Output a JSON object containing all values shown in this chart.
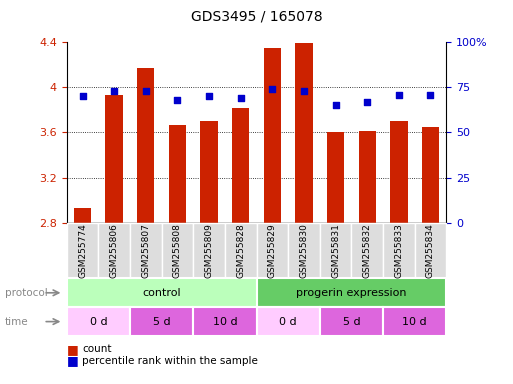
{
  "title": "GDS3495 / 165078",
  "samples": [
    "GSM255774",
    "GSM255806",
    "GSM255807",
    "GSM255808",
    "GSM255809",
    "GSM255828",
    "GSM255829",
    "GSM255830",
    "GSM255831",
    "GSM255832",
    "GSM255833",
    "GSM255834"
  ],
  "bar_values": [
    2.93,
    3.93,
    4.17,
    3.67,
    3.7,
    3.82,
    4.35,
    4.39,
    3.6,
    3.61,
    3.7,
    3.65
  ],
  "dot_values_pct": [
    70,
    73,
    73,
    68,
    70,
    69,
    74,
    73,
    65,
    67,
    71,
    71
  ],
  "bar_color": "#cc2200",
  "dot_color": "#0000cc",
  "ylim_left": [
    2.8,
    4.4
  ],
  "ylim_right": [
    0,
    100
  ],
  "yticks_left": [
    2.8,
    3.2,
    3.6,
    4.0,
    4.4
  ],
  "yticks_right": [
    0,
    25,
    50,
    75,
    100
  ],
  "ytick_labels_left": [
    "2.8",
    "3.2",
    "3.6",
    "4",
    "4.4"
  ],
  "ytick_labels_right": [
    "0",
    "25",
    "50",
    "75",
    "100%"
  ],
  "grid_values": [
    3.2,
    3.6,
    4.0
  ],
  "protocol_labels": [
    "control",
    "progerin expression"
  ],
  "protocol_colors": [
    "#bbffbb",
    "#66cc66"
  ],
  "protocol_ranges": [
    [
      0,
      6
    ],
    [
      6,
      12
    ]
  ],
  "time_labels": [
    "0 d",
    "5 d",
    "10 d",
    "0 d",
    "5 d",
    "10 d"
  ],
  "time_colors": [
    "#ffbbff",
    "#ee77ee",
    "#ee77ee",
    "#ffbbff",
    "#ee77ee",
    "#ee77ee"
  ],
  "time_ranges": [
    [
      0,
      2
    ],
    [
      2,
      4
    ],
    [
      4,
      6
    ],
    [
      6,
      8
    ],
    [
      8,
      10
    ],
    [
      10,
      12
    ]
  ],
  "legend_count_label": "count",
  "legend_pct_label": "percentile rank within the sample",
  "bg_color": "#ffffff",
  "title_fontsize": 10,
  "axis_label_color_left": "#cc2200",
  "axis_label_color_right": "#0000cc",
  "sample_box_color": "#dddddd"
}
